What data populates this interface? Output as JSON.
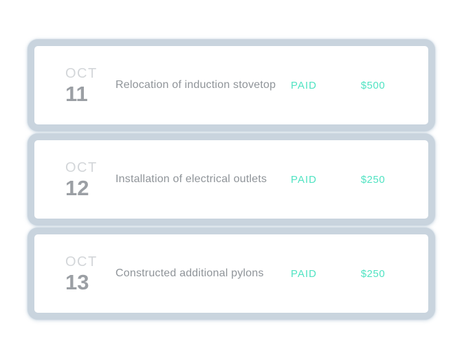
{
  "colors": {
    "accent_teal": "#50e3c2",
    "card_halo": "#c9d4de",
    "month_gray": "#d3d6d9",
    "day_gray": "#9b9fa4",
    "description_gray": "#8f9499",
    "card_background": "#ffffff"
  },
  "payments": {
    "rows": [
      {
        "month": "OCT",
        "day": "11",
        "description": "Relocation of induction stovetop",
        "status": "PAID",
        "amount": "$500"
      },
      {
        "month": "OCT",
        "day": "12",
        "description": "Installation of electrical outlets",
        "status": "PAID",
        "amount": "$250"
      },
      {
        "month": "OCT",
        "day": "13",
        "description": "Constructed additional pylons",
        "status": "PAID",
        "amount": "$250"
      }
    ]
  }
}
